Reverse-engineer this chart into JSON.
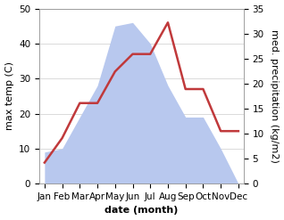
{
  "months": [
    "Jan",
    "Feb",
    "Mar",
    "Apr",
    "May",
    "Jun",
    "Jul",
    "Aug",
    "Sep",
    "Oct",
    "Nov",
    "Dec"
  ],
  "temperature": [
    6,
    13,
    23,
    23,
    32,
    37,
    37,
    46,
    27,
    27,
    15,
    15
  ],
  "precipitation": [
    9,
    10,
    19,
    28,
    45,
    46,
    40,
    28,
    19,
    19,
    10,
    0
  ],
  "temp_color": "#c0393b",
  "precip_fill_color": "#b8c8ee",
  "left_ylabel": "max temp (C)",
  "right_ylabel": "med. precipitation (kg/m2)",
  "xlabel": "date (month)",
  "ylim_left": [
    0,
    50
  ],
  "ylim_right": [
    0,
    35
  ],
  "label_fontsize": 8,
  "tick_fontsize": 7.5,
  "xlabel_fontweight": "bold",
  "line_width": 1.8
}
